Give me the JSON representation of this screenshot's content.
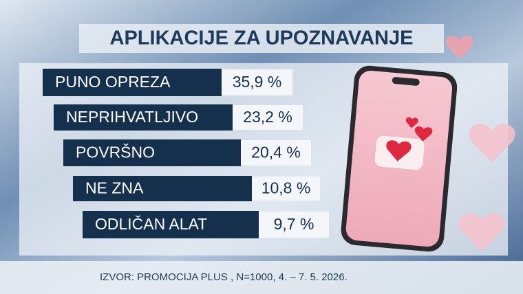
{
  "title": "APLIKACIJE ZA UPOZNAVANJE",
  "rows": [
    {
      "label": "PUNO OPREZA",
      "value": "35,9 %"
    },
    {
      "label": "NEPRIHVATLJIVO",
      "value": "23,2 %"
    },
    {
      "label": "POVRŠNO",
      "value": "20,4 %"
    },
    {
      "label": "NE ZNA",
      "value": "10,8 %"
    },
    {
      "label": "ODLIČAN ALAT",
      "value": "9,7 %"
    }
  ],
  "source": "IZVOR: PROMOCIJA PLUS , N=1000, 4. – 7.  5. 2026."
}
